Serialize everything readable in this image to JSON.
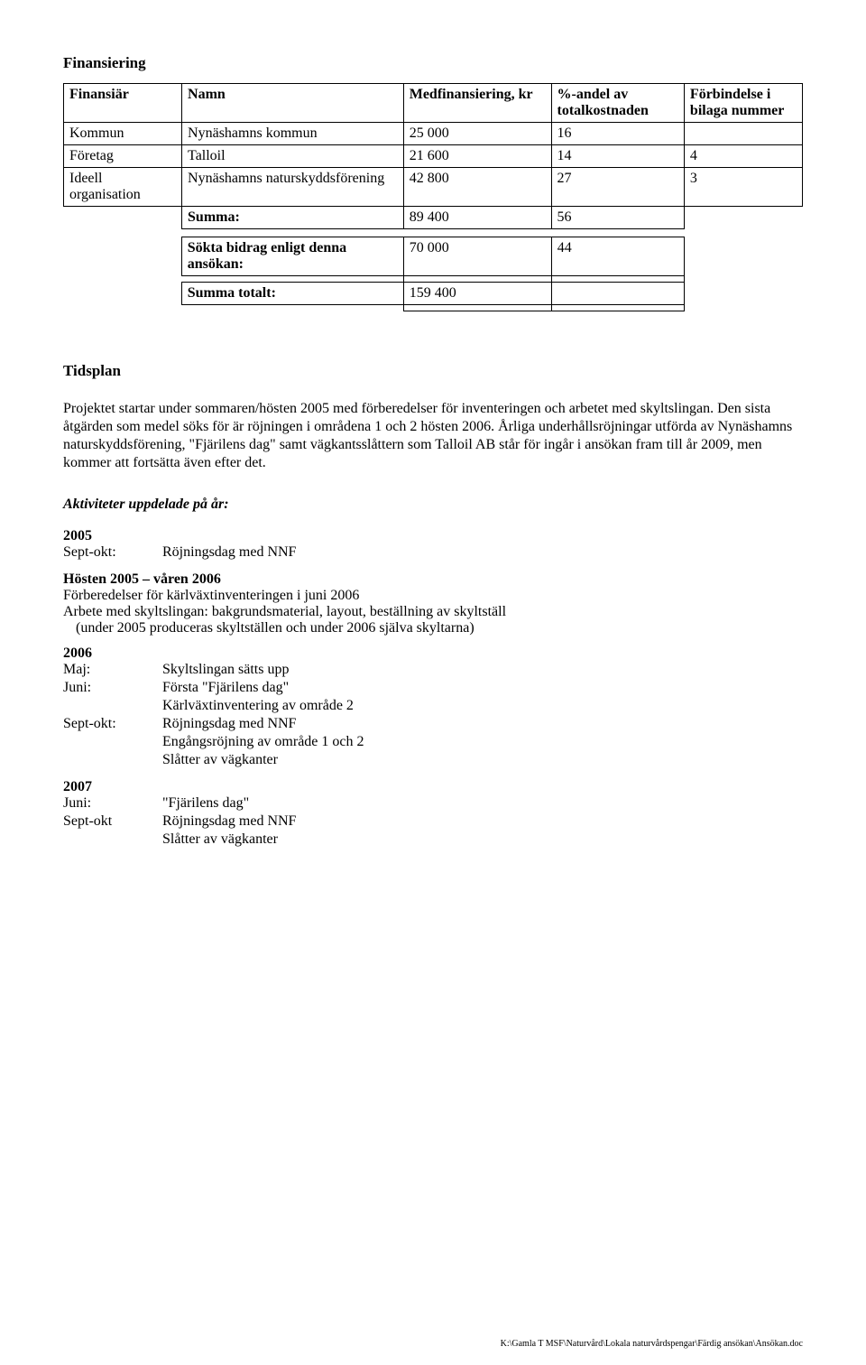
{
  "section_finansiering": {
    "title": "Finansiering"
  },
  "fin_table": {
    "columns": [
      "Finansiär",
      "Namn",
      "Medfinansiering, kr",
      "%-andel av totalkostnaden",
      "Förbindelse i bilaga nummer"
    ],
    "col_widths": [
      "16%",
      "30%",
      "20%",
      "18%",
      "16%"
    ],
    "rows": [
      [
        "Kommun",
        "Nynäshamns kommun",
        "25 000",
        "16",
        ""
      ],
      [
        "Företag",
        "Talloil",
        "21 600",
        "14",
        "4"
      ],
      [
        "Ideell organisation",
        "Nynäshamns naturskyddsförening",
        "42 800",
        "27",
        "3"
      ]
    ],
    "summa_label": "Summa:",
    "summa_row": [
      "89 400",
      "56",
      ""
    ],
    "sokta_label": "Sökta bidrag enligt denna ansökan:",
    "sokta_row": [
      "70 000",
      "44",
      ""
    ],
    "totalt_label": "Summa totalt:",
    "totalt_row": [
      "159 400",
      "",
      ""
    ]
  },
  "section_tidsplan": {
    "title": "Tidsplan",
    "paragraph": "Projektet startar under sommaren/hösten 2005 med förberedelser för inventeringen och arbetet med skyltslingan. Den sista åtgärden som medel söks för är röjningen i områdena 1 och 2 hösten 2006. Årliga underhållsröjningar utförda av Nynäshamns naturskyddsförening, \"Fjärilens dag\" samt vägkantsslåttern som Talloil AB står för ingår i ansökan fram till år 2009, men kommer att fortsätta även efter det."
  },
  "activities": {
    "heading": "Aktiviteter uppdelade på år:",
    "y2005": {
      "year": "2005",
      "rows": [
        {
          "label": "Sept-okt:",
          "text": "Röjningsdag med NNF"
        }
      ]
    },
    "h2005_2006": {
      "title": "Hösten 2005 – våren 2006",
      "lines": [
        "Förberedelser för kärlväxtinventeringen i juni 2006",
        "Arbete med skyltslingan: bakgrundsmaterial, layout, beställning av skyltställ"
      ],
      "indent_line": "(under 2005 produceras skyltställen och under 2006 själva skyltarna)"
    },
    "y2006": {
      "year": "2006",
      "rows": [
        {
          "label": "Maj:",
          "text": "Skyltslingan sätts upp"
        },
        {
          "label": "Juni:",
          "text": "Första \"Fjärilens dag\""
        },
        {
          "label": "",
          "text": "Kärlväxtinventering av område 2"
        },
        {
          "label": "Sept-okt:",
          "text": "Röjningsdag med NNF"
        },
        {
          "label": "",
          "text": "Engångsröjning av område 1 och 2"
        },
        {
          "label": "",
          "text": "Slåtter av vägkanter"
        }
      ]
    },
    "y2007": {
      "year": "2007",
      "rows": [
        {
          "label": "Juni:",
          "text": "\"Fjärilens dag\""
        },
        {
          "label": "Sept-okt",
          "text": "Röjningsdag med NNF"
        },
        {
          "label": "",
          "text": "Slåtter av vägkanter"
        }
      ]
    }
  },
  "footer": "K:\\Gamla T MSF\\Naturvård\\Lokala naturvårdspengar\\Färdig ansökan\\Ansökan.doc"
}
